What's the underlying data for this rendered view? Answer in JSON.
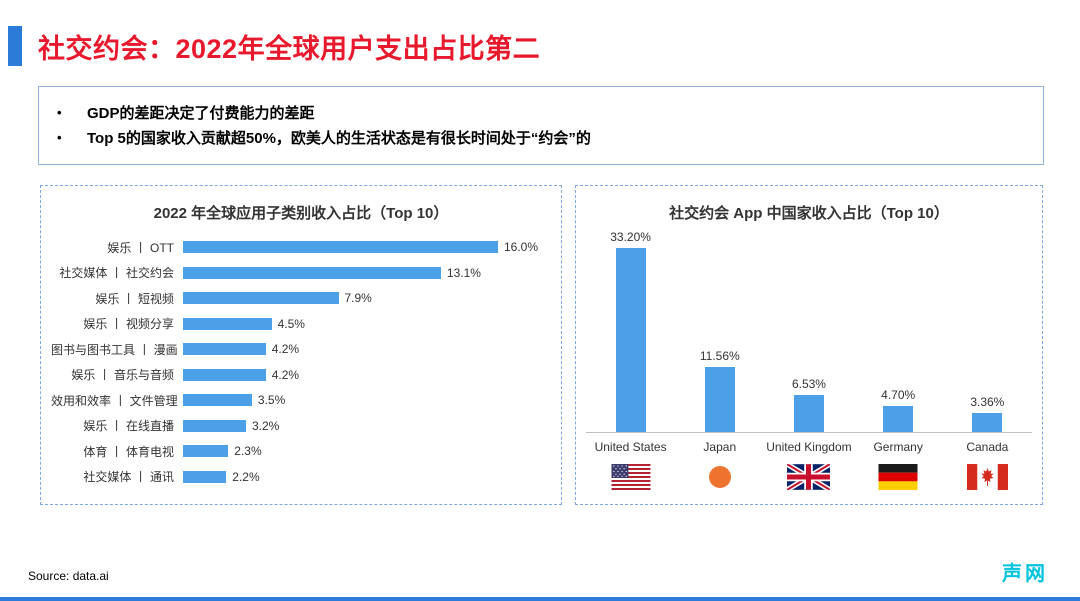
{
  "colors": {
    "title_red": "#E8192C",
    "accent_blue": "#2B7BD9",
    "bar_blue": "#4CA0E8",
    "logo_cyan": "#00C3DD",
    "panel_border": "#7EA6E0"
  },
  "header": {
    "title": "社交约会：2022年全球用户支出占比第二"
  },
  "key_points": {
    "bullet_char": "•",
    "items": [
      "GDP的差距决定了付费能力的差距",
      "Top 5的国家收入贡献超50%，欧美人的生活状态是有很长时间处于“约会”的"
    ]
  },
  "footer": {
    "source": "Source: data.ai",
    "logo": "声网"
  },
  "chart_data": [
    {
      "type": "bar",
      "orientation": "horizontal",
      "title": "2022 年全球应用子类别收入占比（Top 10）",
      "categories": [
        "娱乐 丨 OTT",
        "社交媒体 丨 社交约会",
        "娱乐 丨 短视频",
        "娱乐 丨 视频分享",
        "图书与图书工具 丨 漫画",
        "娱乐 丨 音乐与音频",
        "效用和效率 丨 文件管理",
        "娱乐 丨 在线直播",
        "体育 丨 体育电视",
        "社交媒体 丨 通讯"
      ],
      "values": [
        16.0,
        13.1,
        7.9,
        4.5,
        4.2,
        4.2,
        3.5,
        3.2,
        2.3,
        2.2
      ],
      "labels": [
        "16.0%",
        "13.1%",
        "7.9%",
        "4.5%",
        "4.2%",
        "4.2%",
        "3.5%",
        "3.2%",
        "2.3%",
        "2.2%"
      ],
      "xlabel": "",
      "ylabel": "",
      "xlim": [
        0,
        17
      ],
      "grid": false,
      "legend": "none"
    },
    {
      "type": "bar",
      "orientation": "vertical",
      "title": "社交约会 App 中国家收入占比（Top 10）",
      "categories": [
        "United States",
        "Japan",
        "United Kingdom",
        "Germany",
        "Canada"
      ],
      "values": [
        33.2,
        11.56,
        6.53,
        4.7,
        3.36
      ],
      "labels": [
        "33.20%",
        "11.56%",
        "6.53%",
        "4.70%",
        "3.36%"
      ],
      "flags": [
        "us",
        "jp",
        "gb",
        "de",
        "ca"
      ],
      "xlabel": "",
      "ylabel": "",
      "ylim": [
        0,
        36
      ],
      "grid": false,
      "legend": "none"
    }
  ]
}
